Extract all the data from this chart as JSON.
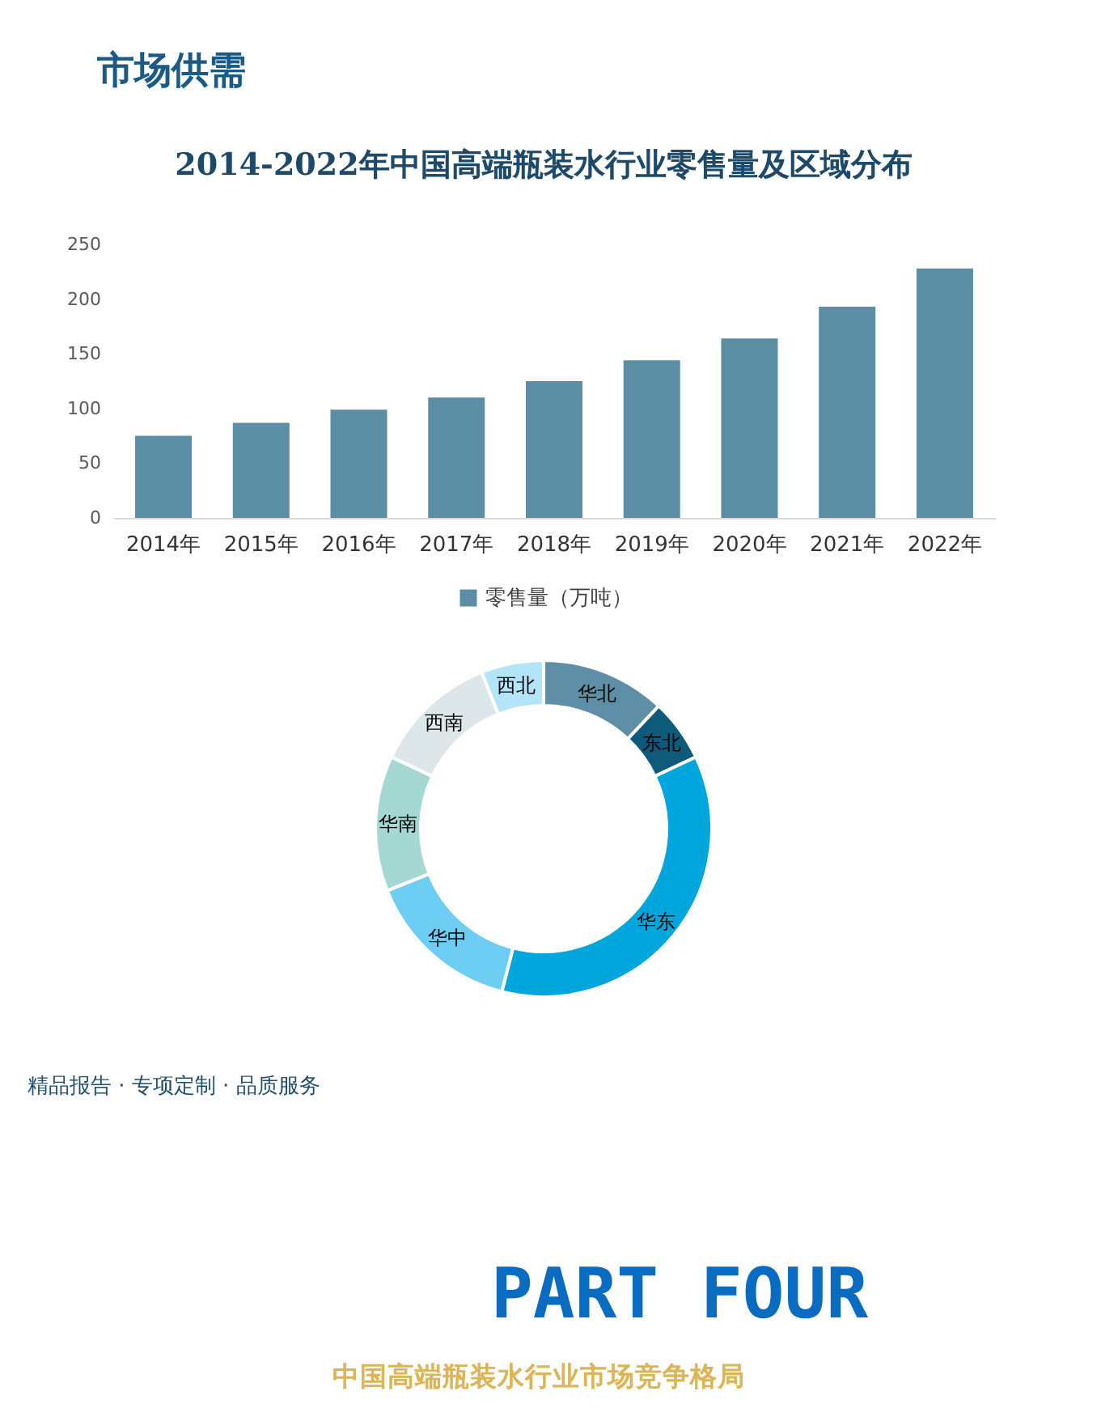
{
  "chart_data": [
    {
      "type": "bar",
      "title": "2014-2022年中国高端瓶装水行业零售量及区域分布",
      "categories": [
        "2014年",
        "2015年",
        "2016年",
        "2017年",
        "2018年",
        "2019年",
        "2020年",
        "2021年",
        "2022年"
      ],
      "series": [
        {
          "name": "零售量（万吨）",
          "color": "#5b8ea5",
          "values": [
            75,
            87,
            99,
            110,
            125,
            144,
            164,
            193,
            228
          ]
        }
      ],
      "ylim": [
        0,
        250
      ],
      "yticks": [
        0,
        50,
        100,
        150,
        200,
        250
      ],
      "grid": false,
      "legend": "bottom",
      "annotations": [
        "市场供需"
      ]
    },
    {
      "type": "donut",
      "categories": [
        "华北",
        "东北",
        "华东",
        "华中",
        "华南",
        "西南",
        "西北"
      ],
      "values": [
        12,
        6,
        36,
        15,
        13,
        12,
        6
      ],
      "colors": [
        "#5e8fa7",
        "#0e5a7a",
        "#00a6dc",
        "#6dcdf3",
        "#a6d8d3",
        "#dde7ea",
        "#b4e4f7"
      ],
      "annotations": [
        "精品报告 · 专项定制 · 品质服务",
        "PART FOUR",
        "中国高端瓶装水行业市场竞争格局"
      ]
    }
  ]
}
